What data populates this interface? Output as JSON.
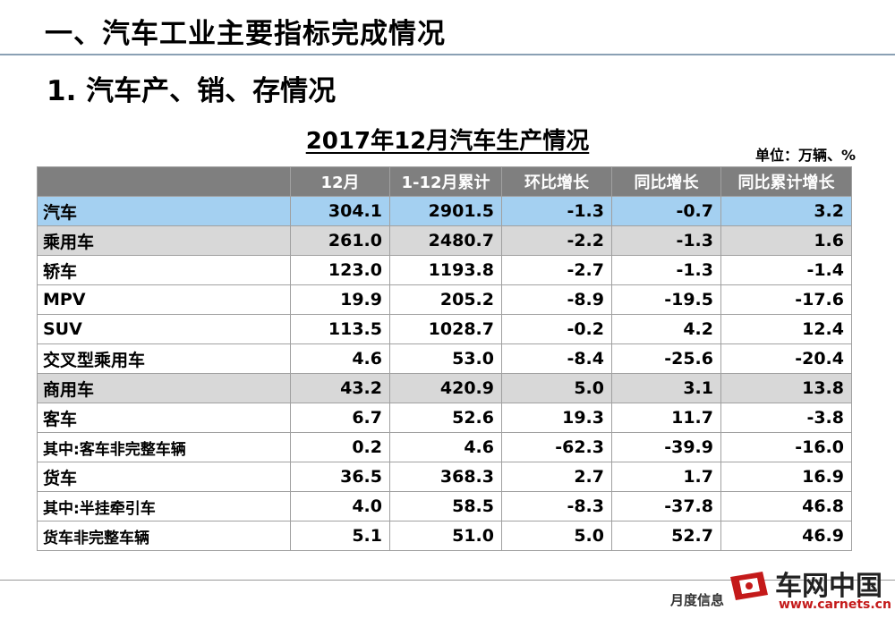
{
  "heading": "一、汽车工业主要指标完成情况",
  "subheading": "1. 汽车产、销、存情况",
  "table_title": "2017年12月汽车生产情况",
  "unit": "单位：万辆、%",
  "columns": [
    "",
    "12月",
    "1-12月累计",
    "环比增长",
    "同比增长",
    "同比累计增长"
  ],
  "rows": [
    {
      "name": "汽车",
      "values": [
        "304.1",
        "2901.5",
        "-1.3",
        "-0.7",
        "3.2"
      ]
    },
    {
      "name": "乘用车",
      "values": [
        "261.0",
        "2480.7",
        "-2.2",
        "-1.3",
        "1.6"
      ]
    },
    {
      "name": "轿车",
      "values": [
        "123.0",
        "1193.8",
        "-2.7",
        "-1.3",
        "-1.4"
      ]
    },
    {
      "name": "MPV",
      "values": [
        "19.9",
        "205.2",
        "-8.9",
        "-19.5",
        "-17.6"
      ]
    },
    {
      "name": "SUV",
      "values": [
        "113.5",
        "1028.7",
        "-0.2",
        "4.2",
        "12.4"
      ]
    },
    {
      "name": "交叉型乘用车",
      "values": [
        "4.6",
        "53.0",
        "-8.4",
        "-25.6",
        "-20.4"
      ]
    },
    {
      "name": "商用车",
      "values": [
        "43.2",
        "420.9",
        "5.0",
        "3.1",
        "13.8"
      ]
    },
    {
      "name": "客车",
      "values": [
        "6.7",
        "52.6",
        "19.3",
        "11.7",
        "-3.8"
      ]
    },
    {
      "name": "其中:客车非完整车辆",
      "values": [
        "0.2",
        "4.6",
        "-62.3",
        "-39.9",
        "-16.0"
      ]
    },
    {
      "name": "货车",
      "values": [
        "36.5",
        "368.3",
        "2.7",
        "1.7",
        "16.9"
      ]
    },
    {
      "name": "其中:半挂牵引车",
      "values": [
        "4.0",
        "58.5",
        "-8.3",
        "-37.8",
        "46.8"
      ]
    },
    {
      "name": "货车非完整车辆",
      "values": [
        "5.1",
        "51.0",
        "5.0",
        "52.7",
        "46.9"
      ]
    }
  ],
  "footer": {
    "text": "月度信息",
    "logo_text": "车网中国",
    "logo_url": "www.carnets.cn"
  },
  "colors": {
    "header_bg": "#7f7f7f",
    "total_row_bg": "#a4d0f1",
    "subtotal_row_bg": "#d8d8d8",
    "logo_red": "#c41a1a"
  }
}
